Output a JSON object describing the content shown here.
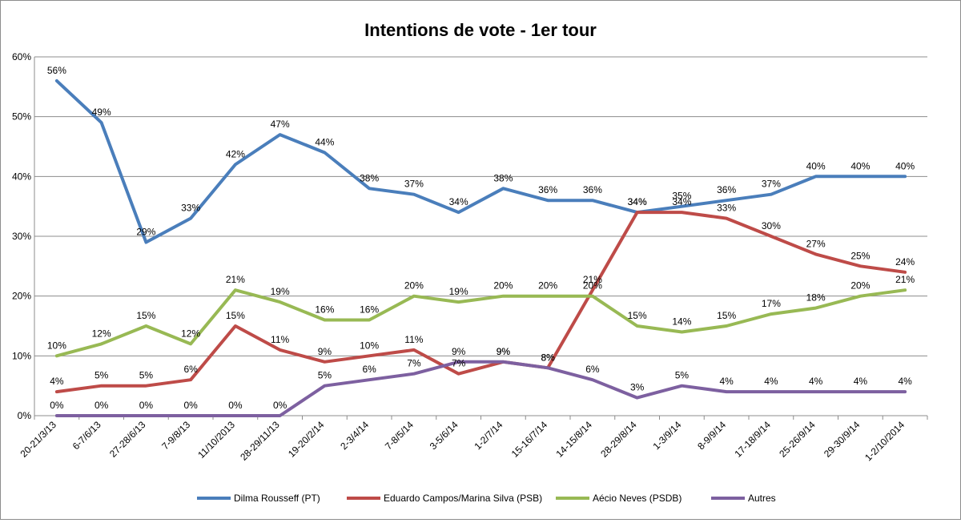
{
  "chart_data": {
    "type": "line",
    "title": "Intentions de vote - 1er tour",
    "xlabel": "",
    "ylabel": "",
    "ylim": [
      0,
      60
    ],
    "y_ticks": [
      "0%",
      "10%",
      "20%",
      "30%",
      "40%",
      "50%",
      "60%"
    ],
    "grid": "horizontal",
    "legend_position": "bottom",
    "categories": [
      "20-21/3/13",
      "6-7/6/13",
      "27-28/6/13",
      "7-9/8/13",
      "11/10/2013",
      "28-29/11/13",
      "19-20/2/14",
      "2-3/4/14",
      "7-8/5/14",
      "3-5/6/14",
      "1-2/7/14",
      "15-16/7/14",
      "14-15/8/14",
      "28-29/8/14",
      "1-3/9/14",
      "8-9/9/14",
      "17-18/9/14",
      "25-26/9/14",
      "29-30/9/14",
      "1-2/10/2014"
    ],
    "series": [
      {
        "name": "Dilma Rousseff (PT)",
        "color": "#4a7ebb",
        "values": [
          56,
          49,
          29,
          33,
          42,
          47,
          44,
          38,
          37,
          34,
          38,
          36,
          36,
          34,
          35,
          36,
          37,
          40,
          40,
          40
        ]
      },
      {
        "name": "Eduardo Campos/Marina Silva (PSB)",
        "color": "#be4b48",
        "values": [
          4,
          5,
          5,
          6,
          15,
          11,
          9,
          10,
          11,
          7,
          9,
          8,
          21,
          34,
          34,
          33,
          30,
          27,
          25,
          24
        ]
      },
      {
        "name": "Aécio Neves (PSDB)",
        "color": "#98b954",
        "values": [
          10,
          12,
          15,
          12,
          21,
          19,
          16,
          16,
          20,
          19,
          20,
          20,
          20,
          15,
          14,
          15,
          17,
          18,
          20,
          21
        ]
      },
      {
        "name": "Autres",
        "color": "#7d60a0",
        "values": [
          0,
          0,
          0,
          0,
          0,
          0,
          5,
          6,
          7,
          9,
          9,
          8,
          6,
          3,
          5,
          4,
          4,
          4,
          4,
          4
        ]
      }
    ],
    "data_labels": [
      [
        "56%",
        "49%",
        "29%",
        "33%",
        "42%",
        "47%",
        "44%",
        "38%",
        "37%",
        "34%",
        "38%",
        "36%",
        "36%",
        "34%",
        "35%",
        "36%",
        "37%",
        "40%",
        "40%",
        "40%"
      ],
      [
        "4%",
        "5%",
        "5%",
        "6%",
        "15%",
        "11%",
        "9%",
        "10%",
        "11%",
        "7%",
        "9%",
        "8%",
        "21%",
        "34%",
        "34%",
        "33%",
        "30%",
        "27%",
        "25%",
        "24%"
      ],
      [
        "10%",
        "12%",
        "15%",
        "12%",
        "21%",
        "19%",
        "16%",
        "16%",
        "20%",
        "19%",
        "20%",
        "20%",
        "20%",
        "15%",
        "14%",
        "15%",
        "17%",
        "18%",
        "20%",
        "21%"
      ],
      [
        "0%",
        "0%",
        "0%",
        "0%",
        "0%",
        "0%",
        "5%",
        "6%",
        "7%",
        "9%",
        "9%",
        "8%",
        "6%",
        "3%",
        "5%",
        "4%",
        "4%",
        "4%",
        "4%",
        "4%"
      ]
    ]
  }
}
